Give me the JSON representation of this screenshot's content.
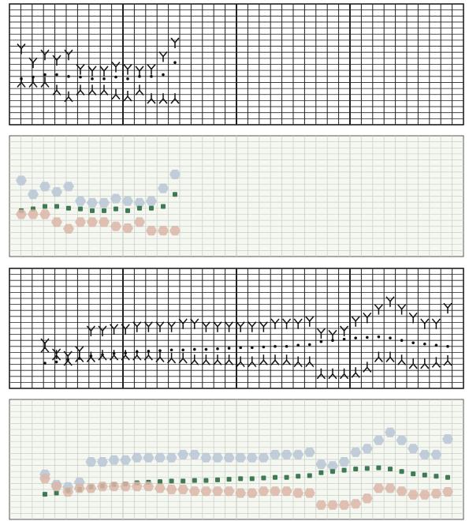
{
  "panels": [
    {
      "style": "ink",
      "ylim": [
        0,
        20
      ],
      "series": [
        {
          "marker": "down-chevron",
          "color": "#111111",
          "values": [
            12.6,
            10.3,
            11.6,
            10.7,
            11.6,
            9.2,
            8.9,
            8.9,
            9.6,
            9.2,
            8.9,
            9.2,
            11.3,
            13.6
          ]
        },
        {
          "marker": "dot",
          "color": "#111111",
          "values": [
            7.6,
            7.9,
            8.3,
            8.3,
            8.0,
            7.9,
            7.6,
            7.6,
            7.9,
            7.6,
            8.0,
            8.0,
            8.3,
            10.3
          ]
        },
        {
          "marker": "up-chevron",
          "color": "#111111",
          "values": [
            7.0,
            7.0,
            7.0,
            5.7,
            4.6,
            5.7,
            5.7,
            5.7,
            5.0,
            4.7,
            5.7,
            4.3,
            4.3,
            4.3
          ]
        }
      ]
    },
    {
      "style": "color",
      "ylim": [
        0,
        20
      ],
      "series": [
        {
          "marker": "blob",
          "color": "#b8c5d6",
          "values": [
            12.6,
            10.3,
            11.6,
            10.7,
            11.6,
            9.2,
            8.9,
            8.9,
            9.6,
            9.2,
            8.9,
            9.2,
            11.3,
            13.6
          ]
        },
        {
          "marker": "square",
          "color": "#3f7a55",
          "values": [
            7.6,
            7.9,
            8.3,
            8.3,
            8.0,
            7.9,
            7.6,
            7.6,
            7.9,
            7.6,
            8.0,
            8.0,
            8.3,
            10.3
          ]
        },
        {
          "marker": "blob",
          "color": "#dbb6a8",
          "values": [
            7.0,
            7.0,
            7.0,
            5.7,
            4.6,
            5.7,
            5.7,
            5.7,
            5.0,
            4.7,
            5.7,
            4.3,
            4.3,
            4.3
          ]
        }
      ]
    },
    {
      "style": "ink",
      "ylim": [
        0,
        20
      ],
      "series": [
        {
          "marker": "down-chevron",
          "color": "#111111",
          "values": [
            7.5,
            5.8,
            5.4,
            6.2,
            9.6,
            9.6,
            9.9,
            9.9,
            10.3,
            10.3,
            10.3,
            10.3,
            10.8,
            10.8,
            10.3,
            10.3,
            10.3,
            10.3,
            10.3,
            10.3,
            10.8,
            10.8,
            10.8,
            11.2,
            9.2,
            8.9,
            9.6,
            11.2,
            11.8,
            13.2,
            14.5,
            13.2,
            11.8,
            10.8,
            10.8,
            13.4
          ]
        },
        {
          "marker": "dot",
          "color": "#111111",
          "values": [
            4.2,
            4.4,
            4.8,
            5.0,
            5.4,
            5.6,
            5.8,
            5.9,
            6.1,
            6.2,
            6.3,
            6.4,
            6.4,
            6.5,
            6.5,
            6.6,
            6.7,
            6.8,
            6.8,
            6.9,
            7.0,
            7.0,
            7.2,
            7.3,
            7.8,
            8.0,
            8.2,
            8.4,
            8.5,
            8.6,
            8.4,
            8.0,
            7.6,
            7.4,
            7.2,
            7.0
          ]
        },
        {
          "marker": "up-chevron",
          "color": "#111111",
          "values": [
            6.8,
            5.5,
            4.6,
            5.2,
            5.2,
            5.5,
            5.5,
            5.5,
            5.5,
            5.5,
            5.2,
            5.0,
            5.0,
            4.7,
            4.7,
            4.7,
            4.7,
            4.4,
            4.4,
            4.7,
            4.7,
            4.7,
            4.4,
            4.4,
            2.4,
            2.4,
            2.4,
            2.6,
            3.5,
            5.2,
            5.2,
            4.7,
            4.1,
            4.1,
            4.3,
            4.6
          ]
        }
      ]
    },
    {
      "style": "color",
      "ylim": [
        0,
        20
      ],
      "series": [
        {
          "marker": "blob",
          "color": "#b8c5d6",
          "values": [
            7.5,
            5.8,
            5.4,
            6.2,
            9.6,
            9.6,
            9.9,
            9.9,
            10.3,
            10.3,
            10.3,
            10.3,
            10.8,
            10.8,
            10.3,
            10.3,
            10.3,
            10.3,
            10.3,
            10.3,
            10.8,
            10.8,
            10.8,
            11.2,
            9.2,
            8.9,
            9.6,
            11.2,
            11.8,
            13.2,
            14.5,
            13.2,
            11.8,
            10.8,
            10.8,
            13.4
          ]
        },
        {
          "marker": "square",
          "color": "#3f7a55",
          "values": [
            4.2,
            4.4,
            4.8,
            5.0,
            5.4,
            5.6,
            5.8,
            5.9,
            6.1,
            6.2,
            6.3,
            6.4,
            6.4,
            6.5,
            6.5,
            6.6,
            6.7,
            6.8,
            6.8,
            6.9,
            7.0,
            7.0,
            7.2,
            7.3,
            7.8,
            8.0,
            8.2,
            8.4,
            8.5,
            8.6,
            8.4,
            8.0,
            7.6,
            7.4,
            7.2,
            7.0
          ]
        },
        {
          "marker": "blob",
          "color": "#dbb6a8",
          "values": [
            6.8,
            5.5,
            4.6,
            5.2,
            5.2,
            5.5,
            5.5,
            5.5,
            5.5,
            5.5,
            5.2,
            5.0,
            5.0,
            4.7,
            4.7,
            4.7,
            4.7,
            4.4,
            4.4,
            4.7,
            4.7,
            4.7,
            4.4,
            4.4,
            2.4,
            2.4,
            2.4,
            2.6,
            3.5,
            5.2,
            5.2,
            4.7,
            4.1,
            4.1,
            4.3,
            4.6
          ]
        }
      ]
    }
  ]
}
